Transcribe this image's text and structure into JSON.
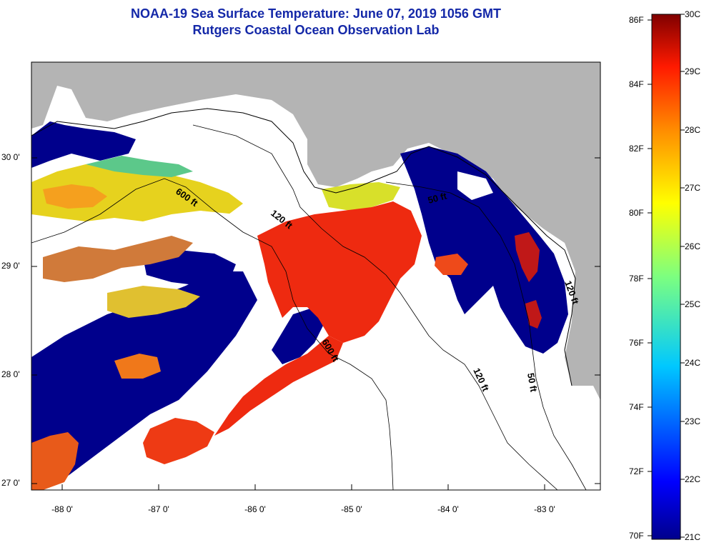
{
  "title": {
    "line1": "NOAA-19 Sea Surface Temperature:  June 07, 2019 1056 GMT",
    "line2": "Rutgers Coastal Ocean Observation Lab"
  },
  "map": {
    "lat_labels": [
      "30 0'",
      "29 0'",
      "28 0'",
      "27 0'"
    ],
    "lon_labels": [
      "-88 0'",
      "-87 0'",
      "-86 0'",
      "-85 0'",
      "-84 0'",
      "-83 0'"
    ],
    "contour_labels": [
      "600 ft",
      "120 ft",
      "50 ft",
      "600 ft",
      "120 ft",
      "50 ft",
      "120 ft"
    ],
    "land_color": "#b4b4b4",
    "cloud_color": "#ffffff",
    "cold_color": "#00008c"
  },
  "colorbar": {
    "fahrenheit_labels": [
      "86F",
      "84F",
      "82F",
      "80F",
      "78F",
      "76F",
      "74F",
      "72F",
      "70F"
    ],
    "celsius_labels": [
      "30C",
      "29C",
      "28C",
      "27C",
      "26C",
      "25C",
      "24C",
      "23C",
      "22C",
      "21C"
    ],
    "min_c": 21,
    "max_c": 30
  }
}
